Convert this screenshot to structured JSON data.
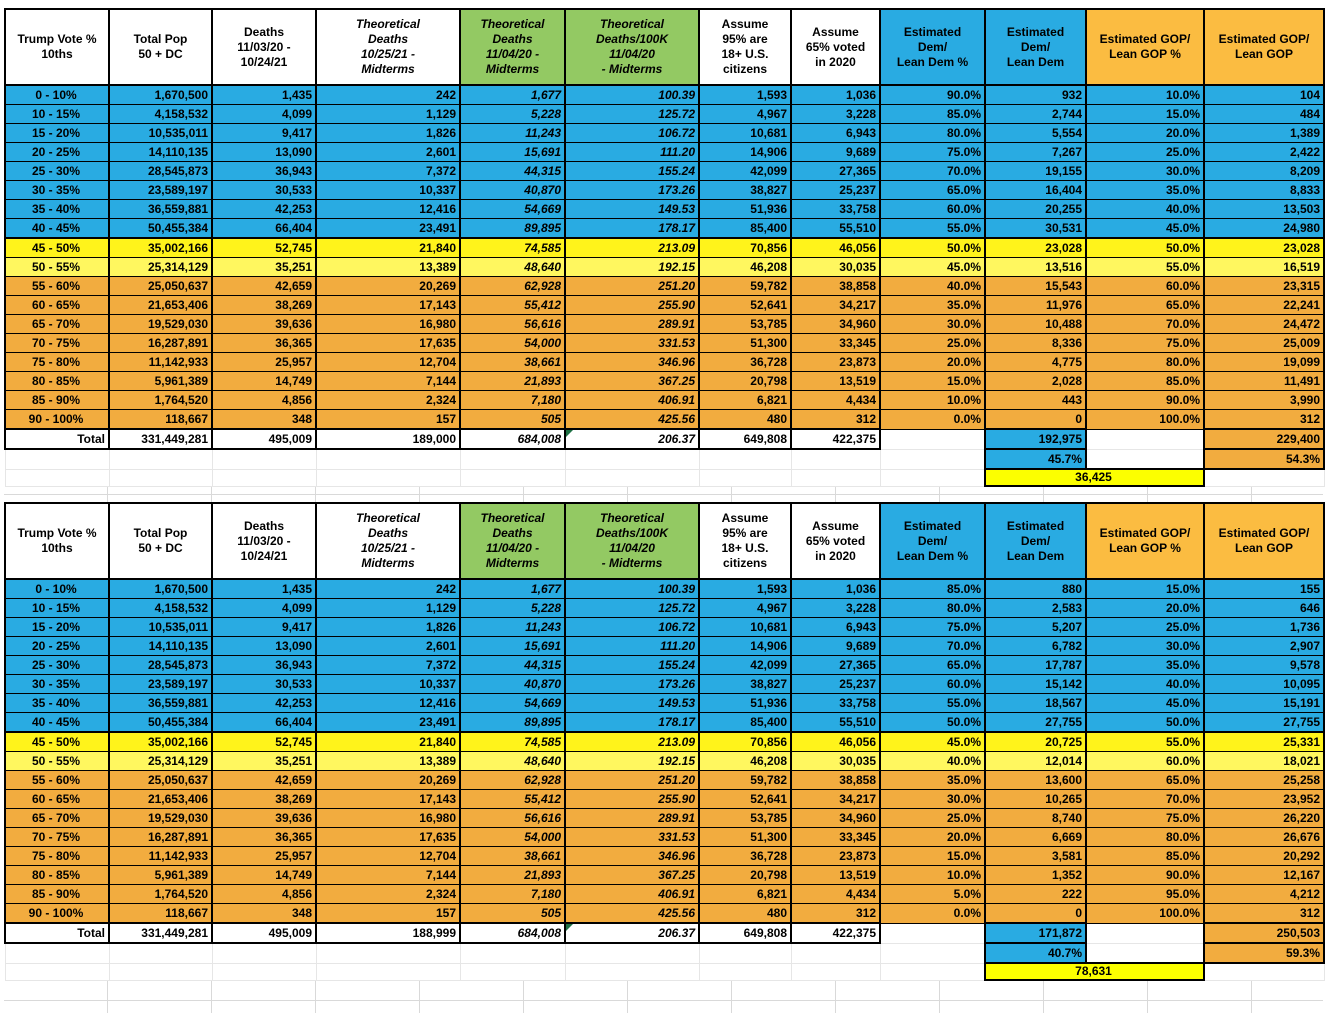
{
  "sheet": {
    "colors": {
      "dem_blue": "#29ABE2",
      "gop_orange_row": "#F2AC3F",
      "gop_orange_header": "#FBBC41",
      "swing_yellow": "#FFF31B",
      "swing_yellow_light": "#FFF75F",
      "margin_yellow": "#FCFF00",
      "theoretical_green": "#93C963",
      "error_flag_green": "#1E7145"
    },
    "columns": [
      {
        "id": "vote_bracket",
        "label": "Trump Vote %\n10ths"
      },
      {
        "id": "total_pop",
        "label": "Total Pop\n50 + DC"
      },
      {
        "id": "deaths",
        "label": "Deaths\n11/03/20 -\n10/24/21"
      },
      {
        "id": "theoretical_deaths_future",
        "label": "Theoretical\nDeaths\n10/25/21 -\nMidterms"
      },
      {
        "id": "theoretical_deaths_total",
        "label": "Theoretical\nDeaths\n11/04/20 -\nMidterms"
      },
      {
        "id": "theoretical_deaths_per100k",
        "label": "Theoretical\nDeaths/100K\n11/04/20\n- Midterms"
      },
      {
        "id": "assume_citizens",
        "label": "Assume\n95% are\n18+ U.S.\ncitizens"
      },
      {
        "id": "assume_voted",
        "label": "Assume\n65% voted\nin 2020"
      },
      {
        "id": "dem_pct",
        "label": "Estimated\nDem/\nLean Dem %"
      },
      {
        "id": "dem_count",
        "label": "Estimated\nDem/\nLean Dem"
      },
      {
        "id": "gop_pct",
        "label": "Estimated GOP/\nLean GOP %"
      },
      {
        "id": "gop_count",
        "label": "Estimated GOP/\nLean GOP"
      }
    ],
    "tables": [
      {
        "name": "scenario-1",
        "rows": [
          {
            "label": "0 - 10%",
            "band": "blue",
            "values": [
              "1,670,500",
              "1,435",
              "242",
              "1,677",
              "100.39",
              "1,593",
              "1,036",
              "90.0%",
              "932",
              "10.0%",
              "104"
            ]
          },
          {
            "label": "10 - 15%",
            "band": "blue",
            "values": [
              "4,158,532",
              "4,099",
              "1,129",
              "5,228",
              "125.72",
              "4,967",
              "3,228",
              "85.0%",
              "2,744",
              "15.0%",
              "484"
            ]
          },
          {
            "label": "15 - 20%",
            "band": "blue",
            "values": [
              "10,535,011",
              "9,417",
              "1,826",
              "11,243",
              "106.72",
              "10,681",
              "6,943",
              "80.0%",
              "5,554",
              "20.0%",
              "1,389"
            ]
          },
          {
            "label": "20 - 25%",
            "band": "blue",
            "values": [
              "14,110,135",
              "13,090",
              "2,601",
              "15,691",
              "111.20",
              "14,906",
              "9,689",
              "75.0%",
              "7,267",
              "25.0%",
              "2,422"
            ]
          },
          {
            "label": "25 - 30%",
            "band": "blue",
            "values": [
              "28,545,873",
              "36,943",
              "7,372",
              "44,315",
              "155.24",
              "42,099",
              "27,365",
              "70.0%",
              "19,155",
              "30.0%",
              "8,209"
            ]
          },
          {
            "label": "30 - 35%",
            "band": "blue",
            "values": [
              "23,589,197",
              "30,533",
              "10,337",
              "40,870",
              "173.26",
              "38,827",
              "25,237",
              "65.0%",
              "16,404",
              "35.0%",
              "8,833"
            ]
          },
          {
            "label": "35 - 40%",
            "band": "blue",
            "values": [
              "36,559,881",
              "42,253",
              "12,416",
              "54,669",
              "149.53",
              "51,936",
              "33,758",
              "60.0%",
              "20,255",
              "40.0%",
              "13,503"
            ]
          },
          {
            "label": "40 - 45%",
            "band": "blue",
            "values": [
              "50,455,384",
              "66,404",
              "23,491",
              "89,895",
              "178.17",
              "85,400",
              "55,510",
              "55.0%",
              "30,531",
              "45.0%",
              "24,980"
            ]
          },
          {
            "label": "45 - 50%",
            "band": "yellow1",
            "values": [
              "35,002,166",
              "52,745",
              "21,840",
              "74,585",
              "213.09",
              "70,856",
              "46,056",
              "50.0%",
              "23,028",
              "50.0%",
              "23,028"
            ]
          },
          {
            "label": "50 - 55%",
            "band": "yellow2",
            "values": [
              "25,314,129",
              "35,251",
              "13,389",
              "48,640",
              "192.15",
              "46,208",
              "30,035",
              "45.0%",
              "13,516",
              "55.0%",
              "16,519"
            ]
          },
          {
            "label": "55 - 60%",
            "band": "orange",
            "values": [
              "25,050,637",
              "42,659",
              "20,269",
              "62,928",
              "251.20",
              "59,782",
              "38,858",
              "40.0%",
              "15,543",
              "60.0%",
              "23,315"
            ]
          },
          {
            "label": "60 - 65%",
            "band": "orange",
            "values": [
              "21,653,406",
              "38,269",
              "17,143",
              "55,412",
              "255.90",
              "52,641",
              "34,217",
              "35.0%",
              "11,976",
              "65.0%",
              "22,241"
            ]
          },
          {
            "label": "65 - 70%",
            "band": "orange",
            "values": [
              "19,529,030",
              "39,636",
              "16,980",
              "56,616",
              "289.91",
              "53,785",
              "34,960",
              "30.0%",
              "10,488",
              "70.0%",
              "24,472"
            ]
          },
          {
            "label": "70 - 75%",
            "band": "orange",
            "values": [
              "16,287,891",
              "36,365",
              "17,635",
              "54,000",
              "331.53",
              "51,300",
              "33,345",
              "25.0%",
              "8,336",
              "75.0%",
              "25,009"
            ]
          },
          {
            "label": "75 - 80%",
            "band": "orange",
            "values": [
              "11,142,933",
              "25,957",
              "12,704",
              "38,661",
              "346.96",
              "36,728",
              "23,873",
              "20.0%",
              "4,775",
              "80.0%",
              "19,099"
            ]
          },
          {
            "label": "80 - 85%",
            "band": "orange",
            "values": [
              "5,961,389",
              "14,749",
              "7,144",
              "21,893",
              "367.25",
              "20,798",
              "13,519",
              "15.0%",
              "2,028",
              "85.0%",
              "11,491"
            ]
          },
          {
            "label": "85 - 90%",
            "band": "orange",
            "values": [
              "1,764,520",
              "4,856",
              "2,324",
              "7,180",
              "406.91",
              "6,821",
              "4,434",
              "10.0%",
              "443",
              "90.0%",
              "3,990"
            ]
          },
          {
            "label": "90 - 100%",
            "band": "orange",
            "values": [
              "118,667",
              "348",
              "157",
              "505",
              "425.56",
              "480",
              "312",
              "0.0%",
              "0",
              "100.0%",
              "312"
            ]
          }
        ],
        "total": {
          "label": "Total",
          "values": [
            "331,449,281",
            "495,009",
            "189,000",
            "684,008",
            "206.37",
            "649,808",
            "422,375"
          ],
          "dem": "192,975",
          "gop": "229,400"
        },
        "summary": {
          "dem_pct": "45.7%",
          "gop_pct": "54.3%",
          "margin": "36,425"
        }
      },
      {
        "name": "scenario-2",
        "rows": [
          {
            "label": "0 - 10%",
            "band": "blue",
            "values": [
              "1,670,500",
              "1,435",
              "242",
              "1,677",
              "100.39",
              "1,593",
              "1,036",
              "85.0%",
              "880",
              "15.0%",
              "155"
            ]
          },
          {
            "label": "10 - 15%",
            "band": "blue",
            "values": [
              "4,158,532",
              "4,099",
              "1,129",
              "5,228",
              "125.72",
              "4,967",
              "3,228",
              "80.0%",
              "2,583",
              "20.0%",
              "646"
            ]
          },
          {
            "label": "15 - 20%",
            "band": "blue",
            "values": [
              "10,535,011",
              "9,417",
              "1,826",
              "11,243",
              "106.72",
              "10,681",
              "6,943",
              "75.0%",
              "5,207",
              "25.0%",
              "1,736"
            ]
          },
          {
            "label": "20 - 25%",
            "band": "blue",
            "values": [
              "14,110,135",
              "13,090",
              "2,601",
              "15,691",
              "111.20",
              "14,906",
              "9,689",
              "70.0%",
              "6,782",
              "30.0%",
              "2,907"
            ]
          },
          {
            "label": "25 - 30%",
            "band": "blue",
            "values": [
              "28,545,873",
              "36,943",
              "7,372",
              "44,315",
              "155.24",
              "42,099",
              "27,365",
              "65.0%",
              "17,787",
              "35.0%",
              "9,578"
            ]
          },
          {
            "label": "30 - 35%",
            "band": "blue",
            "values": [
              "23,589,197",
              "30,533",
              "10,337",
              "40,870",
              "173.26",
              "38,827",
              "25,237",
              "60.0%",
              "15,142",
              "40.0%",
              "10,095"
            ]
          },
          {
            "label": "35 - 40%",
            "band": "blue",
            "values": [
              "36,559,881",
              "42,253",
              "12,416",
              "54,669",
              "149.53",
              "51,936",
              "33,758",
              "55.0%",
              "18,567",
              "45.0%",
              "15,191"
            ]
          },
          {
            "label": "40 - 45%",
            "band": "blue",
            "values": [
              "50,455,384",
              "66,404",
              "23,491",
              "89,895",
              "178.17",
              "85,400",
              "55,510",
              "50.0%",
              "27,755",
              "50.0%",
              "27,755"
            ]
          },
          {
            "label": "45 - 50%",
            "band": "yellow1",
            "values": [
              "35,002,166",
              "52,745",
              "21,840",
              "74,585",
              "213.09",
              "70,856",
              "46,056",
              "45.0%",
              "20,725",
              "55.0%",
              "25,331"
            ]
          },
          {
            "label": "50 - 55%",
            "band": "yellow2",
            "values": [
              "25,314,129",
              "35,251",
              "13,389",
              "48,640",
              "192.15",
              "46,208",
              "30,035",
              "40.0%",
              "12,014",
              "60.0%",
              "18,021"
            ]
          },
          {
            "label": "55 - 60%",
            "band": "orange",
            "values": [
              "25,050,637",
              "42,659",
              "20,269",
              "62,928",
              "251.20",
              "59,782",
              "38,858",
              "35.0%",
              "13,600",
              "65.0%",
              "25,258"
            ]
          },
          {
            "label": "60 - 65%",
            "band": "orange",
            "values": [
              "21,653,406",
              "38,269",
              "17,143",
              "55,412",
              "255.90",
              "52,641",
              "34,217",
              "30.0%",
              "10,265",
              "70.0%",
              "23,952"
            ]
          },
          {
            "label": "65 - 70%",
            "band": "orange",
            "values": [
              "19,529,030",
              "39,636",
              "16,980",
              "56,616",
              "289.91",
              "53,785",
              "34,960",
              "25.0%",
              "8,740",
              "75.0%",
              "26,220"
            ]
          },
          {
            "label": "70 - 75%",
            "band": "orange",
            "values": [
              "16,287,891",
              "36,365",
              "17,635",
              "54,000",
              "331.53",
              "51,300",
              "33,345",
              "20.0%",
              "6,669",
              "80.0%",
              "26,676"
            ]
          },
          {
            "label": "75 - 80%",
            "band": "orange",
            "values": [
              "11,142,933",
              "25,957",
              "12,704",
              "38,661",
              "346.96",
              "36,728",
              "23,873",
              "15.0%",
              "3,581",
              "85.0%",
              "20,292"
            ]
          },
          {
            "label": "80 - 85%",
            "band": "orange",
            "values": [
              "5,961,389",
              "14,749",
              "7,144",
              "21,893",
              "367.25",
              "20,798",
              "13,519",
              "10.0%",
              "1,352",
              "90.0%",
              "12,167"
            ]
          },
          {
            "label": "85 - 90%",
            "band": "orange",
            "values": [
              "1,764,520",
              "4,856",
              "2,324",
              "7,180",
              "406.91",
              "6,821",
              "4,434",
              "5.0%",
              "222",
              "95.0%",
              "4,212"
            ]
          },
          {
            "label": "90 - 100%",
            "band": "orange",
            "values": [
              "118,667",
              "348",
              "157",
              "505",
              "425.56",
              "480",
              "312",
              "0.0%",
              "0",
              "100.0%",
              "312"
            ]
          }
        ],
        "total": {
          "label": "Total",
          "values": [
            "331,449,281",
            "495,009",
            "188,999",
            "684,008",
            "206.37",
            "649,808",
            "422,375"
          ],
          "dem": "171,872",
          "gop": "250,503"
        },
        "summary": {
          "dem_pct": "40.7%",
          "gop_pct": "59.3%",
          "margin": "78,631"
        }
      }
    ]
  }
}
